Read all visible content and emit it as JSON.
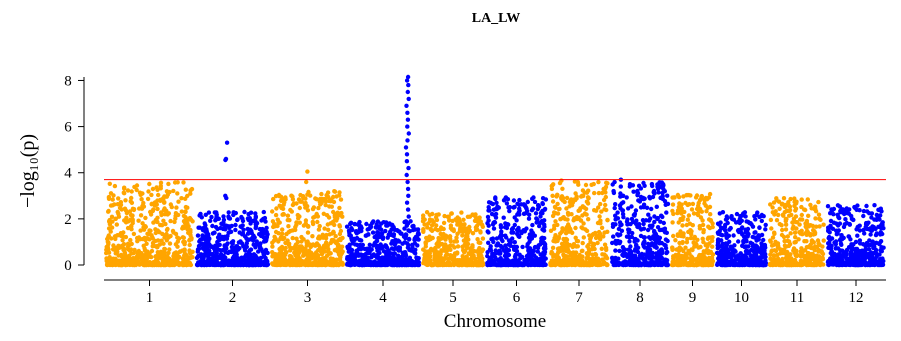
{
  "chart_data": {
    "type": "scatter",
    "subtype": "manhattan",
    "title": "LA_LW",
    "xlabel": "Chromosome",
    "ylabel": "−log₁₀(p)",
    "ylim": [
      0,
      8.3
    ],
    "yticks": [
      0,
      2,
      4,
      6,
      8
    ],
    "threshold": 3.7,
    "threshold_color": "#ff0000",
    "colors": {
      "odd": "#ffa500",
      "even": "#0000ff"
    },
    "chromosomes": [
      {
        "label": "1",
        "color": "odd",
        "max_bg": 3.6
      },
      {
        "label": "2",
        "color": "even",
        "max_bg": 2.3,
        "peaks": [
          {
            "pos": 0.42,
            "values": [
              5.3,
              4.6,
              4.55,
              3.0,
              2.9
            ]
          }
        ]
      },
      {
        "label": "3",
        "color": "odd",
        "max_bg": 3.2,
        "peaks": [
          {
            "pos": 0.48,
            "values": [
              4.05,
              3.6
            ]
          }
        ]
      },
      {
        "label": "4",
        "color": "even",
        "max_bg": 1.9,
        "peaks": [
          {
            "pos": 0.82,
            "values": [
              8.15,
              8.0,
              7.8,
              7.5,
              7.2,
              6.9,
              6.6,
              6.3,
              6.0,
              5.7,
              5.4,
              5.1,
              4.8,
              4.5,
              4.2,
              3.9,
              3.6,
              3.3,
              3.0,
              2.7,
              2.4,
              2.1,
              1.8,
              1.5
            ]
          }
        ]
      },
      {
        "label": "5",
        "color": "odd",
        "max_bg": 2.3
      },
      {
        "label": "6",
        "color": "even",
        "max_bg": 3.0
      },
      {
        "label": "7",
        "color": "odd",
        "max_bg": 3.7
      },
      {
        "label": "8",
        "color": "even",
        "max_bg": 3.6,
        "peaks": [
          {
            "pos": 0.18,
            "values": [
              3.7,
              3.4,
              3.1
            ]
          },
          {
            "pos": 0.9,
            "values": [
              3.5,
              3.45,
              3.3
            ]
          }
        ]
      },
      {
        "label": "9",
        "color": "odd",
        "max_bg": 3.1
      },
      {
        "label": "10",
        "color": "even",
        "max_bg": 2.3
      },
      {
        "label": "11",
        "color": "odd",
        "max_bg": 2.9
      },
      {
        "label": "12",
        "color": "even",
        "max_bg": 2.6
      }
    ]
  }
}
